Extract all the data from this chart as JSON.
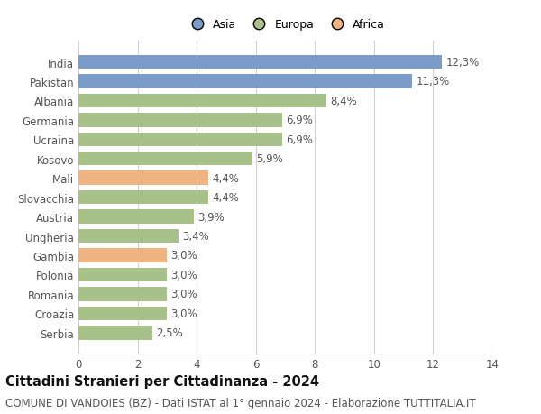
{
  "categories": [
    "Serbia",
    "Croazia",
    "Romania",
    "Polonia",
    "Gambia",
    "Ungheria",
    "Austria",
    "Slovacchia",
    "Mali",
    "Kosovo",
    "Ucraina",
    "Germania",
    "Albania",
    "Pakistan",
    "India"
  ],
  "values": [
    2.5,
    3.0,
    3.0,
    3.0,
    3.0,
    3.4,
    3.9,
    4.4,
    4.4,
    5.9,
    6.9,
    6.9,
    8.4,
    11.3,
    12.3
  ],
  "labels": [
    "2,5%",
    "3,0%",
    "3,0%",
    "3,0%",
    "3,0%",
    "3,4%",
    "3,9%",
    "4,4%",
    "4,4%",
    "5,9%",
    "6,9%",
    "6,9%",
    "8,4%",
    "11,3%",
    "12,3%"
  ],
  "colors": [
    "#a8c08a",
    "#a8c08a",
    "#a8c08a",
    "#a8c08a",
    "#f0b482",
    "#a8c08a",
    "#a8c08a",
    "#a8c08a",
    "#f0b482",
    "#a8c08a",
    "#a8c08a",
    "#a8c08a",
    "#a8c08a",
    "#7b9cc9",
    "#7b9cc9"
  ],
  "legend": [
    {
      "label": "Asia",
      "color": "#7b9cc9"
    },
    {
      "label": "Europa",
      "color": "#a8c08a"
    },
    {
      "label": "Africa",
      "color": "#f0b482"
    }
  ],
  "xlim": [
    0,
    14
  ],
  "xticks": [
    0,
    2,
    4,
    6,
    8,
    10,
    12,
    14
  ],
  "title": "Cittadini Stranieri per Cittadinanza - 2024",
  "subtitle": "COMUNE DI VANDOIES (BZ) - Dati ISTAT al 1° gennaio 2024 - Elaborazione TUTTITALIA.IT",
  "background_color": "#ffffff",
  "grid_color": "#d0d0d0",
  "bar_height": 0.72,
  "title_fontsize": 10.5,
  "subtitle_fontsize": 8.5,
  "tick_fontsize": 8.5,
  "label_fontsize": 8.5,
  "legend_fontsize": 9
}
